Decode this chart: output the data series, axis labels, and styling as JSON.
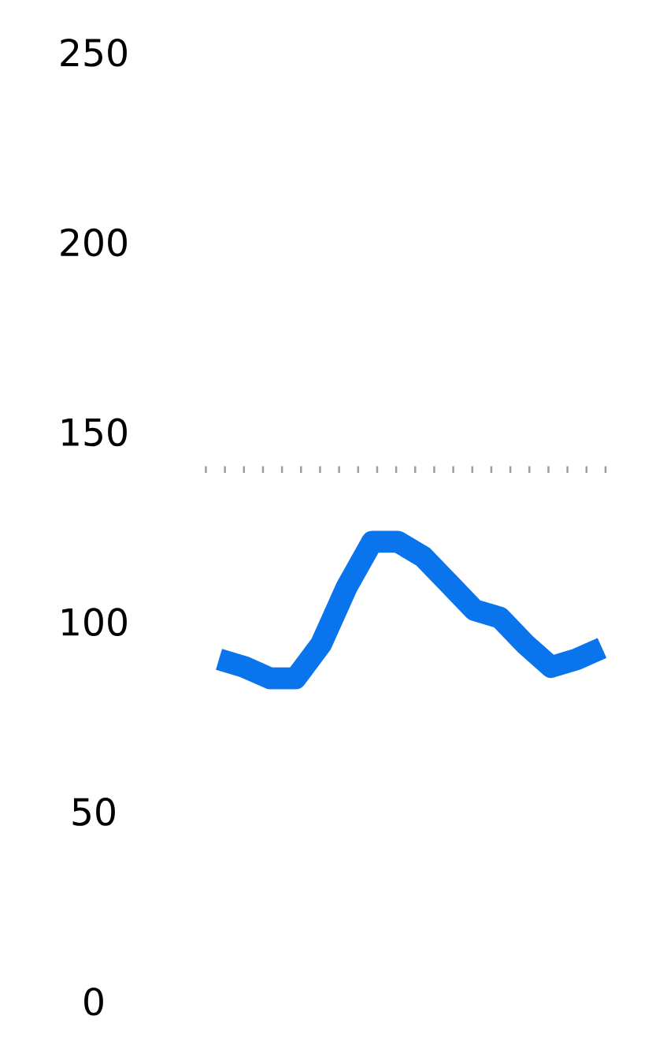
{
  "chart_data": {
    "type": "line",
    "categories": [
      null,
      null,
      null,
      null,
      null,
      null,
      null,
      null,
      null,
      null,
      null,
      null,
      null,
      null,
      null,
      null
    ],
    "series": [
      {
        "color": "#0a74ec",
        "values": [
          90,
          88,
          85,
          85,
          94,
          109,
          121,
          121,
          117,
          110,
          103,
          101,
          94,
          88,
          90,
          93
        ]
      }
    ],
    "ylim": [
      0,
      250
    ],
    "yticks": [
      0,
      50,
      100,
      150,
      200,
      250
    ],
    "ref_lines": [
      {
        "axis": "y",
        "value": 140,
        "color": "#9e9e9e",
        "line_style": "dotted"
      }
    ],
    "grid": false,
    "legend": false,
    "marker": "none",
    "line_style": "solid",
    "tick_labels": "y"
  }
}
